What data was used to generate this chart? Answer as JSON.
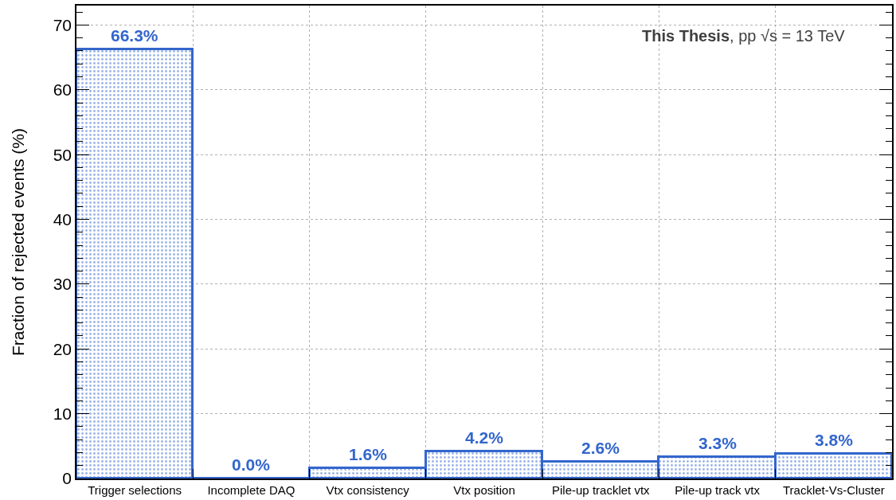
{
  "chart_data": {
    "type": "bar",
    "categories": [
      "Trigger selections",
      "Incomplete DAQ",
      "Vtx consistency",
      "Vtx position",
      "Pile-up tracklet vtx",
      "Pile-up track vtx",
      "Tracklet-Vs-Cluster"
    ],
    "series": [
      {
        "color": "#3366cc",
        "values": [
          66.3,
          0.0,
          1.6,
          4.2,
          2.6,
          3.3,
          3.8
        ],
        "value_labels": [
          "66.3%",
          "0.0%",
          "1.6%",
          "4.2%",
          "2.6%",
          "3.3%",
          "3.8%"
        ]
      }
    ],
    "ylabel": "Fraction of rejected events (%)",
    "annotations": [
      "This Thesis, pp √s = 13 TeV"
    ],
    "ylim": [
      0,
      73
    ],
    "yticks": [
      0,
      10,
      20,
      30,
      40,
      50,
      60,
      70
    ],
    "grid": true
  }
}
